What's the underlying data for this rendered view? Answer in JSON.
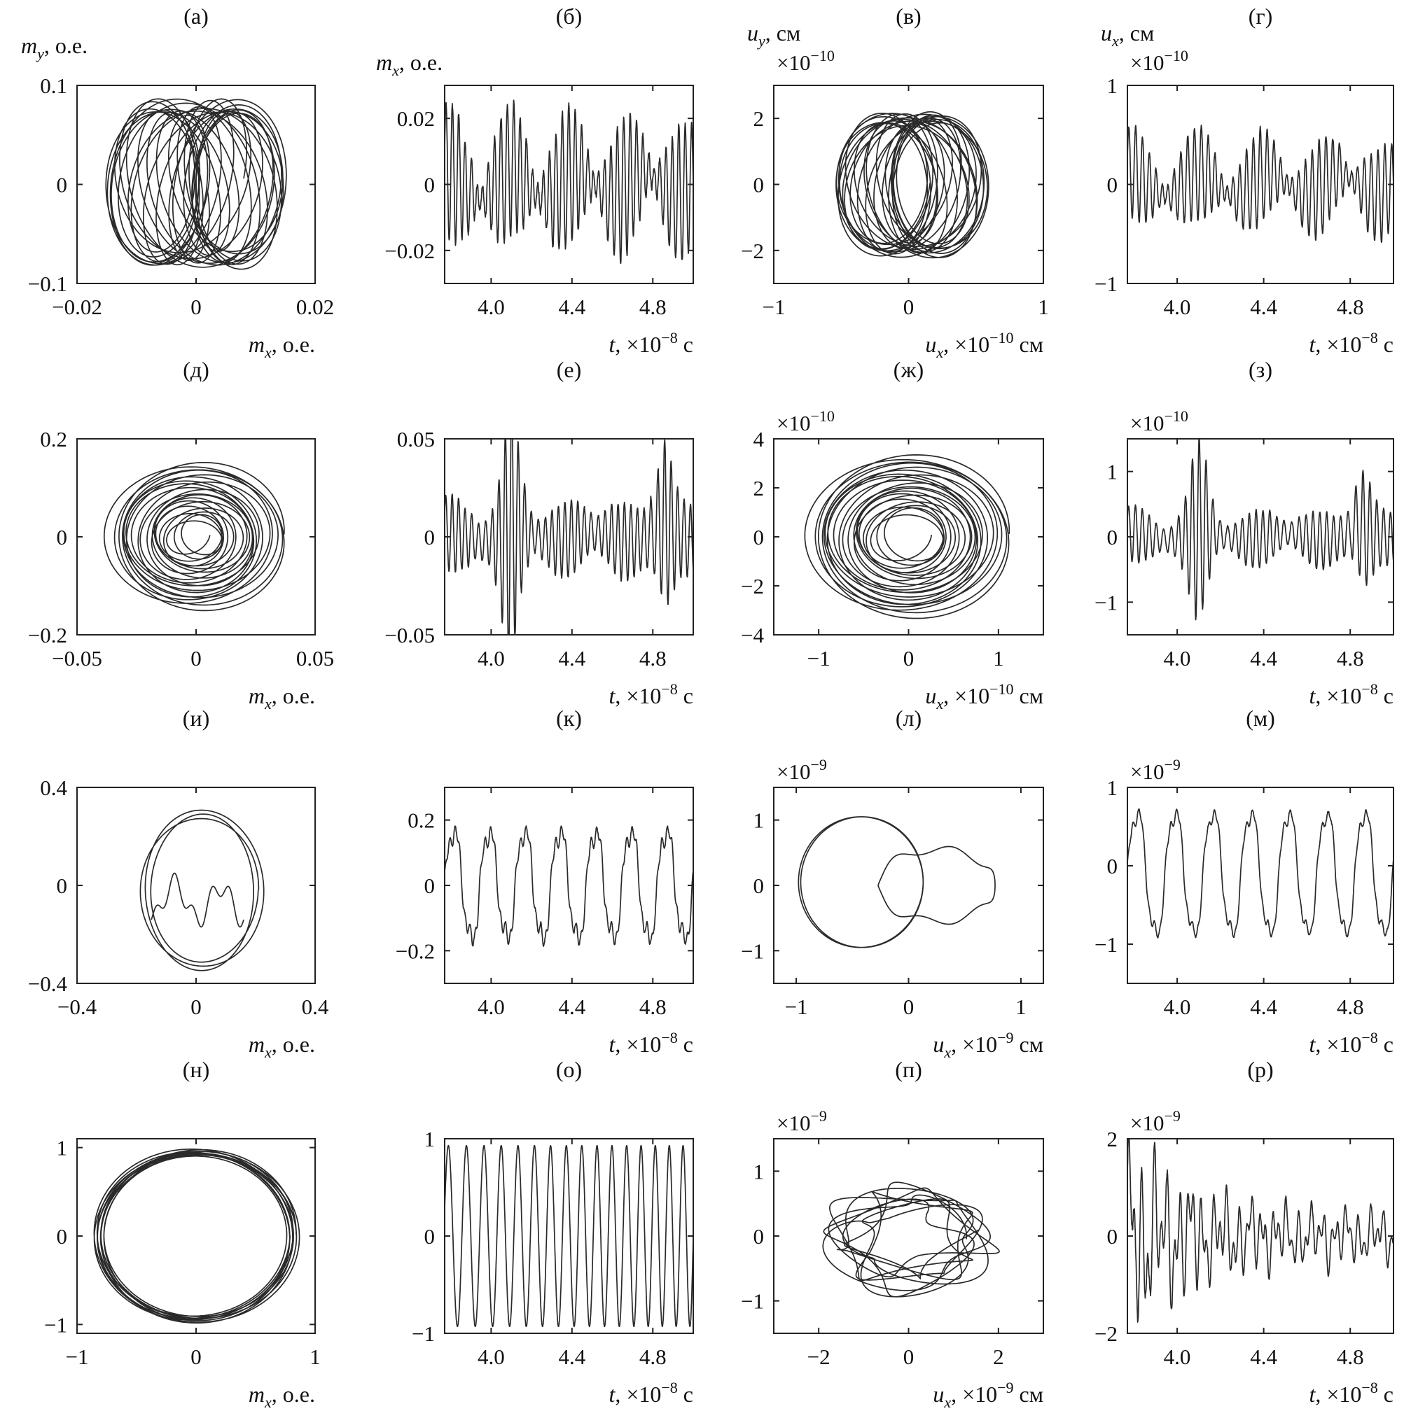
{
  "chart_data": [
    {
      "id": "a",
      "type": "line",
      "panel_label": "(а)",
      "kind": "phase",
      "ylabel_var": "m",
      "ylabel_sub": "y",
      "ylabel_unit": ", о.е.",
      "ylabel": "m_y, о.е.",
      "multiplier_base": "",
      "multiplier_exp": "",
      "xlabel_var": "m",
      "xlabel_sub": "x",
      "xlabel_rest": ", о.е.",
      "xlabel_exp": "",
      "xlabel_tail": "",
      "xlabel": "m_x, о.е.",
      "xlim": [
        -0.02,
        0.02
      ],
      "ylim": [
        -0.1,
        0.1
      ],
      "xticks": [
        "−0.02",
        "0",
        "0.02"
      ],
      "xtick_values": [
        -0.02,
        0,
        0.02
      ],
      "yticks": [
        "−0.1",
        "0",
        "0.1"
      ],
      "ytick_values": [
        -0.1,
        0,
        0.1
      ],
      "traj": {
        "ax": 0.008,
        "ay": 0.082,
        "cx": 0.0,
        "cy": 0.0,
        "dx": 0.0075,
        "dy": 0.006,
        "loops": 26,
        "shrink": 0.12,
        "w": 0.37
      }
    },
    {
      "id": "b",
      "type": "line",
      "panel_label": "(б)",
      "kind": "time",
      "ylabel_var": "m",
      "ylabel_sub": "x",
      "ylabel_unit": ", о.е.",
      "ylabel": "m_x, о.е.",
      "multiplier_base": "",
      "multiplier_exp": "",
      "xlabel_var": "t",
      "xlabel_sub": "",
      "xlabel_rest": ", ×10",
      "xlabel_exp": "−8",
      "xlabel_tail": " с",
      "xlabel": "t, ×10^−8 с",
      "xlim": [
        3.77,
        5.0
      ],
      "ylim": [
        -0.03,
        0.03
      ],
      "xticks": [
        "4.0",
        "4.4",
        "4.8"
      ],
      "xtick_values": [
        4.0,
        4.4,
        4.8
      ],
      "yticks": [
        "−0.02",
        "0",
        "0.02"
      ],
      "ytick_values": [
        -0.02,
        0,
        0.02
      ],
      "sig": {
        "a1": 0.012,
        "f1": 33.0,
        "a2": 0.009,
        "f2": 29.5,
        "a3": 0.004,
        "f3": 3.1,
        "noise": 0.0015,
        "seed": 3
      }
    },
    {
      "id": "c",
      "type": "line",
      "panel_label": "(в)",
      "kind": "phase",
      "ylabel_var": "u",
      "ylabel_sub": "y",
      "ylabel_unit": ", см",
      "ylabel": "u_y, см",
      "multiplier_base": "×10",
      "multiplier_exp": "−10",
      "xlabel_var": "u",
      "xlabel_sub": "x",
      "xlabel_rest": ", ×10",
      "xlabel_exp": "−10",
      "xlabel_tail": " см",
      "xlabel": "u_x, ×10^−10 см",
      "xlim": [
        -1,
        1
      ],
      "ylim": [
        -3,
        3
      ],
      "xticks": [
        "−1",
        "0",
        "1"
      ],
      "xtick_values": [
        -1,
        0,
        1
      ],
      "yticks": [
        "−2",
        "0",
        "2"
      ],
      "ytick_values": [
        -2,
        0,
        2
      ],
      "traj": {
        "ax": 0.36,
        "ay": 2.1,
        "cx": 0.02,
        "cy": 0.0,
        "dx": 0.22,
        "dy": 0.15,
        "loops": 24,
        "shrink": 0.1,
        "w": 0.41
      }
    },
    {
      "id": "d",
      "type": "line",
      "panel_label": "(г)",
      "kind": "time",
      "ylabel_var": "u",
      "ylabel_sub": "x",
      "ylabel_unit": ", см",
      "ylabel": "u_x, см",
      "multiplier_base": "×10",
      "multiplier_exp": "−10",
      "xlabel_var": "t",
      "xlabel_sub": "",
      "xlabel_rest": ", ×10",
      "xlabel_exp": "−8",
      "xlabel_tail": " с",
      "xlabel": "t, ×10^−8 с",
      "xlim": [
        3.77,
        5.0
      ],
      "ylim": [
        -1,
        1
      ],
      "xticks": [
        "4.0",
        "4.4",
        "4.8"
      ],
      "xtick_values": [
        4.0,
        4.4,
        4.8
      ],
      "yticks": [
        "−1",
        "0",
        "1"
      ],
      "ytick_values": [
        -1,
        0,
        1
      ],
      "sig": {
        "a1": 0.28,
        "f1": 33.0,
        "a2": 0.2,
        "f2": 29.5,
        "a3": 0.12,
        "f3": 3.1,
        "noise": 0.03,
        "seed": 5
      }
    },
    {
      "id": "e",
      "type": "line",
      "panel_label": "(д)",
      "kind": "phase",
      "ylabel_var": "",
      "ylabel_sub": "",
      "ylabel_unit": "",
      "ylabel": "",
      "multiplier_base": "",
      "multiplier_exp": "",
      "xlabel_var": "m",
      "xlabel_sub": "x",
      "xlabel_rest": ", о.е.",
      "xlabel_exp": "",
      "xlabel_tail": "",
      "xlabel": "m_x, о.е.",
      "xlim": [
        -0.05,
        0.05
      ],
      "ylim": [
        -0.2,
        0.2
      ],
      "xticks": [
        "−0.05",
        "0",
        "0.05"
      ],
      "xtick_values": [
        -0.05,
        0,
        0.05
      ],
      "yticks": [
        "−0.2",
        "0",
        "0.2"
      ],
      "ytick_values": [
        -0.2,
        0,
        0.2
      ],
      "traj": {
        "ax": 0.037,
        "ay": 0.15,
        "cx": 0.0,
        "cy": 0.0,
        "dx": 0.004,
        "dy": 0.005,
        "loops": 22,
        "shrink": 0.78,
        "w": 0.45
      }
    },
    {
      "id": "f",
      "type": "line",
      "panel_label": "(е)",
      "kind": "time",
      "ylabel_var": "",
      "ylabel_sub": "",
      "ylabel_unit": "",
      "ylabel": "",
      "multiplier_base": "",
      "multiplier_exp": "",
      "xlabel_var": "t",
      "xlabel_sub": "",
      "xlabel_rest": ", ×10",
      "xlabel_exp": "−8",
      "xlabel_tail": " с",
      "xlabel": "t, ×10^−8 с",
      "xlim": [
        3.77,
        5.0
      ],
      "ylim": [
        -0.05,
        0.05
      ],
      "xticks": [
        "4.0",
        "4.4",
        "4.8"
      ],
      "xtick_values": [
        4.0,
        4.4,
        4.8
      ],
      "yticks": [
        "−0.05",
        "0",
        "0.05"
      ],
      "ytick_values": [
        -0.05,
        0,
        0.05
      ],
      "sig": {
        "a1": 0.01,
        "f1": 34.0,
        "a2": 0.026,
        "f2": 30.5,
        "a3": 0.004,
        "f3": 2.8,
        "noise": 0.002,
        "seed": 7,
        "burst": 1
      }
    },
    {
      "id": "g",
      "type": "line",
      "panel_label": "(ж)",
      "kind": "phase",
      "ylabel_var": "",
      "ylabel_sub": "",
      "ylabel_unit": "",
      "ylabel": "",
      "multiplier_base": "×10",
      "multiplier_exp": "−10",
      "xlabel_var": "u",
      "xlabel_sub": "x",
      "xlabel_rest": ", ×10",
      "xlabel_exp": "−10",
      "xlabel_tail": " см",
      "xlabel": "u_x, ×10^−10 см",
      "xlim": [
        -1.5,
        1.5
      ],
      "ylim": [
        -4,
        4
      ],
      "xticks": [
        "−1",
        "0",
        "1"
      ],
      "xtick_values": [
        -1,
        0,
        1
      ],
      "yticks": [
        "−4",
        "−2",
        "0",
        "2",
        "4"
      ],
      "ytick_values": [
        -4,
        -2,
        0,
        2,
        4
      ],
      "traj": {
        "ax": 1.12,
        "ay": 3.3,
        "cx": 0.0,
        "cy": 0.0,
        "dx": 0.1,
        "dy": 0.12,
        "loops": 22,
        "shrink": 0.72,
        "w": 0.45
      }
    },
    {
      "id": "h",
      "type": "line",
      "panel_label": "(з)",
      "kind": "time",
      "ylabel_var": "",
      "ylabel_sub": "",
      "ylabel_unit": "",
      "ylabel": "",
      "multiplier_base": "×10",
      "multiplier_exp": "−10",
      "xlabel_var": "t",
      "xlabel_sub": "",
      "xlabel_rest": ", ×10",
      "xlabel_exp": "−8",
      "xlabel_tail": " с",
      "xlabel": "t, ×10^−8 с",
      "xlim": [
        3.77,
        5.0
      ],
      "ylim": [
        -1.5,
        1.5
      ],
      "xticks": [
        "4.0",
        "4.4",
        "4.8"
      ],
      "xtick_values": [
        4.0,
        4.4,
        4.8
      ],
      "yticks": [
        "−1",
        "0",
        "1"
      ],
      "ytick_values": [
        -1,
        0,
        1
      ],
      "sig": {
        "a1": 0.25,
        "f1": 34.0,
        "a2": 0.55,
        "f2": 30.5,
        "a3": 0.1,
        "f3": 2.8,
        "noise": 0.04,
        "seed": 9,
        "burst": 1
      }
    },
    {
      "id": "i",
      "type": "line",
      "panel_label": "(и)",
      "kind": "phase",
      "ylabel_var": "",
      "ylabel_sub": "",
      "ylabel_unit": "",
      "ylabel": "",
      "multiplier_base": "",
      "multiplier_exp": "",
      "xlabel_var": "m",
      "xlabel_sub": "x",
      "xlabel_rest": ", о.е.",
      "xlabel_exp": "",
      "xlabel_tail": "",
      "xlabel": "m_x, о.е.",
      "xlim": [
        -0.4,
        0.4
      ],
      "ylim": [
        -0.4,
        0.4
      ],
      "xticks": [
        "−0.4",
        "0",
        "0.4"
      ],
      "xtick_values": [
        -0.4,
        0,
        0.4
      ],
      "yticks": [
        "−0.4",
        "0",
        "0.4"
      ],
      "ytick_values": [
        -0.4,
        0,
        0.4
      ],
      "pattern": "smile"
    },
    {
      "id": "j",
      "type": "line",
      "panel_label": "(к)",
      "kind": "time",
      "ylabel_var": "",
      "ylabel_sub": "",
      "ylabel_unit": "",
      "ylabel": "",
      "multiplier_base": "",
      "multiplier_exp": "",
      "xlabel_var": "t",
      "xlabel_sub": "",
      "xlabel_rest": ", ×10",
      "xlabel_exp": "−8",
      "xlabel_tail": " с",
      "xlabel": "t, ×10^−8 с",
      "xlim": [
        3.77,
        5.0
      ],
      "ylim": [
        -0.3,
        0.3
      ],
      "xticks": [
        "4.0",
        "4.4",
        "4.8"
      ],
      "xtick_values": [
        4.0,
        4.4,
        4.8
      ],
      "yticks": [
        "−0.2",
        "0",
        "0.2"
      ],
      "ytick_values": [
        -0.2,
        0,
        0.2
      ],
      "sig": {
        "a1": 0.17,
        "f1": 5.7,
        "a2": 0.03,
        "f2": 17.1,
        "a3": 0.02,
        "f3": 40.0,
        "noise": 0.006,
        "seed": 11
      }
    },
    {
      "id": "k",
      "type": "line",
      "panel_label": "(л)",
      "kind": "phase",
      "ylabel_var": "",
      "ylabel_sub": "",
      "ylabel_unit": "",
      "ylabel": "",
      "multiplier_base": "×10",
      "multiplier_exp": "−9",
      "xlabel_var": "u",
      "xlabel_sub": "x",
      "xlabel_rest": ", ×10",
      "xlabel_exp": "−9",
      "xlabel_tail": " см",
      "xlabel": "u_x, ×10^−9 см",
      "xlim": [
        -1.2,
        1.2
      ],
      "ylim": [
        -1.5,
        1.5
      ],
      "xticks": [
        "−1",
        "0",
        "1"
      ],
      "xtick_values": [
        -1,
        0,
        1
      ],
      "yticks": [
        "−1",
        "0",
        "1"
      ],
      "ytick_values": [
        -1,
        0,
        1
      ],
      "pattern": "bigcircle"
    },
    {
      "id": "l",
      "type": "line",
      "panel_label": "(м)",
      "kind": "time",
      "ylabel_var": "",
      "ylabel_sub": "",
      "ylabel_unit": "",
      "ylabel": "",
      "multiplier_base": "×10",
      "multiplier_exp": "−9",
      "xlabel_var": "t",
      "xlabel_sub": "",
      "xlabel_rest": ", ×10",
      "xlabel_exp": "−8",
      "xlabel_tail": " с",
      "xlabel": "t, ×10^−8 с",
      "xlim": [
        3.77,
        5.0
      ],
      "ylim": [
        -1.5,
        1
      ],
      "xticks": [
        "4.0",
        "4.4",
        "4.8"
      ],
      "xtick_values": [
        4.0,
        4.4,
        4.8
      ],
      "yticks": [
        "−1",
        "0",
        "1"
      ],
      "ytick_values": [
        -1,
        0,
        1
      ],
      "sig": {
        "a1": 0.8,
        "f1": 5.7,
        "a2": 0.12,
        "f2": 17.1,
        "a3": 0.05,
        "f3": 40.0,
        "noise": 0.02,
        "seed": 13,
        "offset": -0.1
      }
    },
    {
      "id": "m",
      "type": "line",
      "panel_label": "(н)",
      "kind": "phase",
      "ylabel_var": "",
      "ylabel_sub": "",
      "ylabel_unit": "",
      "ylabel": "",
      "multiplier_base": "",
      "multiplier_exp": "",
      "xlabel_var": "m",
      "xlabel_sub": "x",
      "xlabel_rest": ", о.е.",
      "xlabel_exp": "",
      "xlabel_tail": "",
      "xlabel": "m_x, о.е.",
      "xlim": [
        -1,
        1
      ],
      "ylim": [
        -1.1,
        1.1
      ],
      "xticks": [
        "−1",
        "0",
        "1"
      ],
      "xtick_values": [
        -1,
        0,
        1
      ],
      "yticks": [
        "−1",
        "0",
        "1"
      ],
      "ytick_values": [
        -1,
        0,
        1
      ],
      "traj": {
        "ax": 0.84,
        "ay": 0.97,
        "cx": 0.0,
        "cy": 0.0,
        "dx": 0.04,
        "dy": 0.02,
        "loops": 10,
        "shrink": 0.06,
        "w": 0.6
      }
    },
    {
      "id": "n",
      "type": "line",
      "panel_label": "(о)",
      "kind": "time",
      "ylabel_var": "",
      "ylabel_sub": "",
      "ylabel_unit": "",
      "ylabel": "",
      "multiplier_base": "",
      "multiplier_exp": "",
      "xlabel_var": "t",
      "xlabel_sub": "",
      "xlabel_rest": ", ×10",
      "xlabel_exp": "−8",
      "xlabel_tail": " с",
      "xlabel": "t, ×10^−8 с",
      "xlim": [
        3.77,
        5.0
      ],
      "ylim": [
        -1,
        1
      ],
      "xticks": [
        "4.0",
        "4.4",
        "4.8"
      ],
      "xtick_values": [
        4.0,
        4.4,
        4.8
      ],
      "yticks": [
        "−1",
        "0",
        "1"
      ],
      "ytick_values": [
        -1,
        0,
        1
      ],
      "sig": {
        "a1": 0.93,
        "f1": 12.2,
        "a2": 0.0,
        "f2": 1.0,
        "a3": 0.0,
        "f3": 1.0,
        "noise": 0.0,
        "seed": 15,
        "chirp": 1
      }
    },
    {
      "id": "o",
      "type": "line",
      "panel_label": "(п)",
      "kind": "phase",
      "ylabel_var": "",
      "ylabel_sub": "",
      "ylabel_unit": "",
      "ylabel": "",
      "multiplier_base": "×10",
      "multiplier_exp": "−9",
      "xlabel_var": "u",
      "xlabel_sub": "x",
      "xlabel_rest": ", ×10",
      "xlabel_exp": "−9",
      "xlabel_tail": " см",
      "xlabel": "u_x, ×10^−9 см",
      "xlim": [
        -3,
        3
      ],
      "ylim": [
        -1.5,
        1.5
      ],
      "xticks": [
        "−2",
        "0",
        "2"
      ],
      "xtick_values": [
        -2,
        0,
        2
      ],
      "yticks": [
        "−1",
        "0",
        "1"
      ],
      "ytick_values": [
        -1,
        0,
        1
      ],
      "pattern": "chaos"
    },
    {
      "id": "p",
      "type": "line",
      "panel_label": "(р)",
      "kind": "time",
      "ylabel_var": "",
      "ylabel_sub": "",
      "ylabel_unit": "",
      "ylabel": "",
      "multiplier_base": "×10",
      "multiplier_exp": "−9",
      "xlabel_var": "t",
      "xlabel_sub": "",
      "xlabel_rest": ", ×10",
      "xlabel_exp": "−8",
      "xlabel_tail": " с",
      "xlabel": "t, ×10^−8 с",
      "xlim": [
        3.77,
        5.0
      ],
      "ylim": [
        -2,
        2
      ],
      "xticks": [
        "4.0",
        "4.4",
        "4.8"
      ],
      "xtick_values": [
        4.0,
        4.4,
        4.8
      ],
      "yticks": [
        "−2",
        "0",
        "2"
      ],
      "ytick_values": [
        -2,
        0,
        2
      ],
      "sig": {
        "a1": 0.5,
        "f1": 18.0,
        "a2": 0.45,
        "f2": 33.0,
        "a3": 0.25,
        "f3": 7.0,
        "noise": 0.08,
        "seed": 17,
        "early": 1
      }
    }
  ]
}
